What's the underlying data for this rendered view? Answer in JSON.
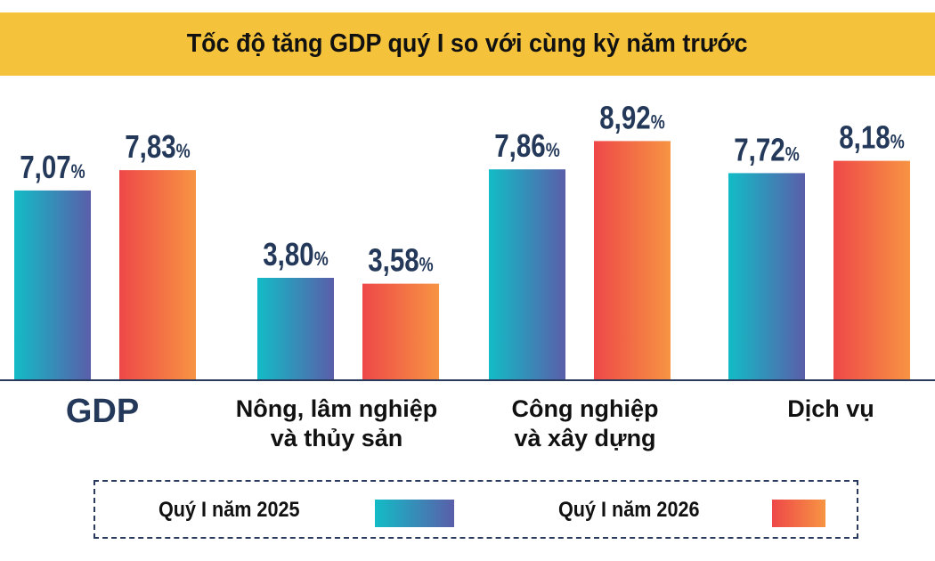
{
  "chart_data": {
    "type": "bar",
    "title": "Tốc độ tăng GDP quý I so với cùng kỳ năm trước",
    "categories": [
      "GDP",
      "Nông, lâm nghiệp\nvà thủy sản",
      "Công nghiệp\nvà xây dựng",
      "Dịch vụ"
    ],
    "series": [
      {
        "name": "Quý I năm 2025",
        "values": [
          7.07,
          3.8,
          7.86,
          7.72
        ],
        "labels": [
          "7,07",
          "3,80",
          "7,86",
          "7,72"
        ],
        "gradient": [
          "#12BCC6",
          "#5A5EAA"
        ]
      },
      {
        "name": "Quý I năm 2026",
        "values": [
          7.83,
          3.58,
          8.92,
          8.18
        ],
        "labels": [
          "7,83",
          "3,58",
          "8,92",
          "8,18"
        ],
        "gradient": [
          "#EE4848",
          "#F79443"
        ]
      }
    ],
    "unit": "%",
    "legend": "bottom",
    "grid": false,
    "colors": {
      "title_band": "#F5C33B",
      "value_text": "#24395A",
      "axis": "#2A3A5C"
    }
  }
}
